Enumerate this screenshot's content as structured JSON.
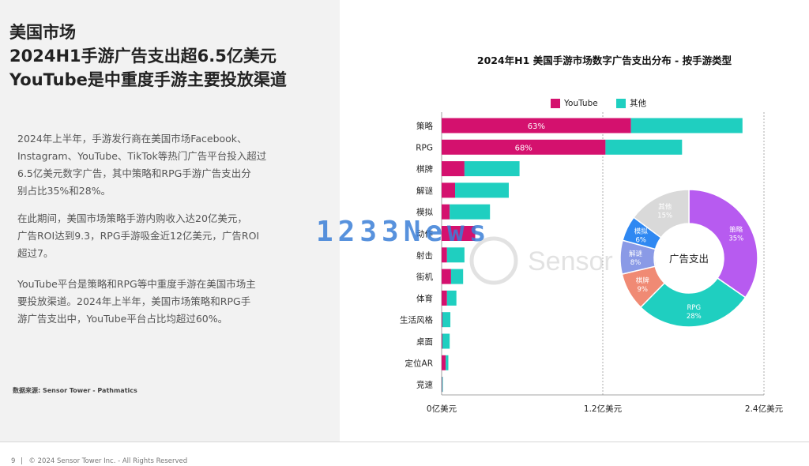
{
  "headline": {
    "line1": "美国市场",
    "line2": "2024H1手游广告支出超6.5亿美元",
    "line3": "YouTube是中重度手游主要投放渠道"
  },
  "paragraphs": [
    [
      "2024年上半年，手游发行商在美国市场Facebook、",
      "Instagram、YouTube、TikTok等热门广告平台投入超过",
      "6.5亿美元数字广告，其中策略和RPG手游广告支出分",
      "别占比35%和28%。"
    ],
    [
      "在此期间，美国市场策略手游内购收入达20亿美元，",
      "广告ROI达到9.3，RPG手游吸金近12亿美元，广告ROI",
      "超过7。"
    ],
    [
      "YouTube平台是策略和RPG等中重度手游在美国市场主",
      "要投放渠道。2024年上半年，美国市场策略和RPG手",
      "游广告支出中，YouTube平台占比均超过60%。"
    ]
  ],
  "source": "数据来源: Sensor Tower - Pathmatics",
  "footer": {
    "page_number": "9",
    "copyright": "© 2024 Sensor Tower Inc. - All Rights Reserved"
  },
  "watermarks": {
    "news": "1233News",
    "brand": "Sensor Tower"
  },
  "colors": {
    "youtube": "#d4116e",
    "other": "#1fcfc0",
    "left_bg": "#f2f2f2"
  },
  "chart_data": [
    {
      "type": "bar",
      "orientation": "horizontal",
      "stacked": true,
      "title": "2024年H1 美国手游市场数字广告支出分布 - 按手游类型",
      "unit": "亿美元",
      "categories": [
        "策略",
        "RPG",
        "棋牌",
        "解谜",
        "模拟",
        "动作",
        "射击",
        "街机",
        "体育",
        "生活风格",
        "桌面",
        "定位AR",
        "竞速"
      ],
      "series": [
        {
          "name": "YouTube",
          "color": "#d4116e",
          "values": [
            1.41,
            1.22,
            0.17,
            0.1,
            0.06,
            0.25,
            0.04,
            0.07,
            0.04,
            0.005,
            0.005,
            0.03,
            0.003
          ]
        },
        {
          "name": "其他",
          "color": "#1fcfc0",
          "values": [
            0.83,
            0.57,
            0.41,
            0.4,
            0.3,
            0.0,
            0.13,
            0.09,
            0.07,
            0.06,
            0.055,
            0.02,
            0.005
          ]
        }
      ],
      "bar_labels": {
        "0": "63%",
        "1": "68%"
      },
      "xlim": [
        0,
        2.4
      ],
      "x_ticks": [
        {
          "value": 0,
          "label": "0亿美元"
        },
        {
          "value": 1.2,
          "label": "1.2亿美元"
        },
        {
          "value": 2.4,
          "label": "2.4亿美元"
        }
      ],
      "legend": "top",
      "grid": "vertical dashed at ticks"
    },
    {
      "type": "pie",
      "donut": true,
      "center_label": "广告支出",
      "slices": [
        {
          "label": "策略",
          "value": 35,
          "display": "35%",
          "color": "#b75bf0"
        },
        {
          "label": "RPG",
          "value": 28,
          "display": "28%",
          "color": "#1fcfc0"
        },
        {
          "label": "棋牌",
          "value": 9,
          "display": "9%",
          "color": "#f08a74"
        },
        {
          "label": "解谜",
          "value": 8,
          "display": "8%",
          "color": "#8a9ae6"
        },
        {
          "label": "模拟",
          "value": 6,
          "display": "6%",
          "color": "#2f88f2"
        },
        {
          "label": "其他",
          "value": 15,
          "display": "15%",
          "color": "#d9d9d9"
        }
      ]
    }
  ]
}
